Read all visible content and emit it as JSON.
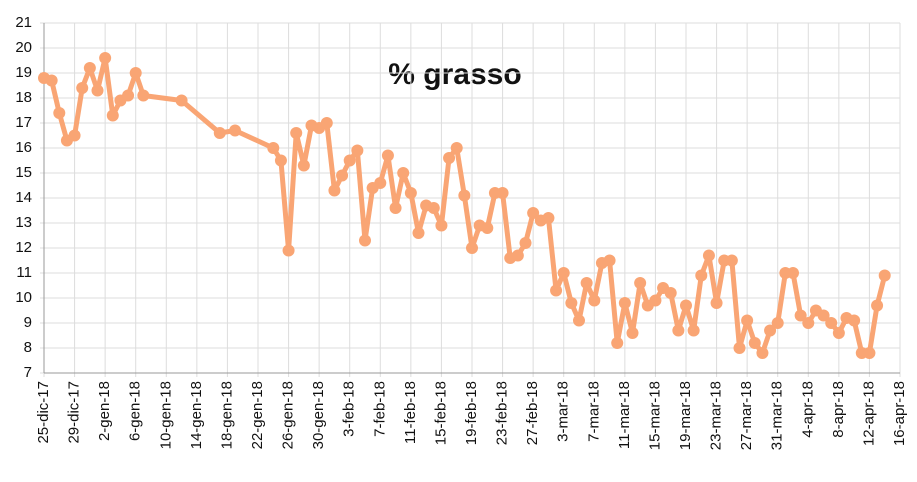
{
  "chart_data": {
    "type": "line",
    "title": "% grasso",
    "color": "#f9a574",
    "grid": true,
    "x": [
      "2017-12-25",
      "2017-12-26",
      "2017-12-27",
      "2017-12-28",
      "2017-12-29",
      "2017-12-30",
      "2017-12-31",
      "2018-01-01",
      "2018-01-02",
      "2018-01-03",
      "2018-01-04",
      "2018-01-05",
      "2018-01-06",
      "2018-01-07",
      "2018-01-12",
      "2018-01-17",
      "2018-01-19",
      "2018-01-24",
      "2018-01-25",
      "2018-01-26",
      "2018-01-27",
      "2018-01-28",
      "2018-01-29",
      "2018-01-30",
      "2018-01-31",
      "2018-02-01",
      "2018-02-02",
      "2018-02-03",
      "2018-02-04",
      "2018-02-05",
      "2018-02-06",
      "2018-02-07",
      "2018-02-08",
      "2018-02-09",
      "2018-02-10",
      "2018-02-11",
      "2018-02-12",
      "2018-02-13",
      "2018-02-14",
      "2018-02-15",
      "2018-02-16",
      "2018-02-17",
      "2018-02-18",
      "2018-02-19",
      "2018-02-20",
      "2018-02-21",
      "2018-02-22",
      "2018-02-23",
      "2018-02-24",
      "2018-02-25",
      "2018-02-26",
      "2018-02-27",
      "2018-02-28",
      "2018-03-01",
      "2018-03-02",
      "2018-03-03",
      "2018-03-04",
      "2018-03-05",
      "2018-03-06",
      "2018-03-07",
      "2018-03-08",
      "2018-03-09",
      "2018-03-10",
      "2018-03-11",
      "2018-03-12",
      "2018-03-13",
      "2018-03-14",
      "2018-03-15",
      "2018-03-16",
      "2018-03-17",
      "2018-03-18",
      "2018-03-19",
      "2018-03-20",
      "2018-03-21",
      "2018-03-22",
      "2018-03-23",
      "2018-03-24",
      "2018-03-25",
      "2018-03-26",
      "2018-03-27",
      "2018-03-28",
      "2018-03-29",
      "2018-03-30",
      "2018-03-31",
      "2018-04-01",
      "2018-04-02",
      "2018-04-03",
      "2018-04-04",
      "2018-04-05",
      "2018-04-06",
      "2018-04-07",
      "2018-04-08",
      "2018-04-09",
      "2018-04-10",
      "2018-04-11",
      "2018-04-12",
      "2018-04-13",
      "2018-04-14"
    ],
    "values": [
      18.8,
      18.7,
      17.4,
      16.3,
      16.5,
      18.4,
      19.2,
      18.3,
      19.6,
      17.3,
      17.9,
      18.1,
      19.0,
      18.1,
      17.9,
      16.6,
      16.7,
      16.0,
      15.5,
      11.9,
      16.6,
      15.3,
      16.9,
      16.8,
      17.0,
      14.3,
      14.9,
      15.5,
      15.9,
      12.3,
      14.4,
      14.6,
      15.7,
      13.6,
      15.0,
      14.2,
      12.6,
      13.7,
      13.6,
      12.9,
      15.6,
      16.0,
      14.1,
      12.0,
      12.9,
      12.8,
      14.2,
      14.2,
      11.6,
      11.7,
      12.2,
      13.4,
      13.1,
      13.2,
      10.3,
      11.0,
      9.8,
      9.1,
      10.6,
      9.9,
      11.4,
      11.5,
      8.2,
      9.8,
      8.6,
      10.6,
      9.7,
      9.9,
      10.4,
      10.2,
      8.7,
      9.7,
      8.7,
      10.9,
      11.7,
      9.8,
      11.5,
      11.5,
      8.0,
      9.1,
      8.2,
      7.8,
      8.7,
      9.0,
      11.0,
      11.0,
      9.3,
      9.0,
      9.5,
      9.3,
      9.0,
      8.6,
      9.2,
      9.1,
      7.8,
      7.8,
      9.7,
      10.9
    ],
    "xlim": [
      "2017-12-25",
      "2018-04-16"
    ],
    "xticks": [
      {
        "value": "2017-12-25",
        "label": "25-dic-17"
      },
      {
        "value": "2017-12-29",
        "label": "29-dic-17"
      },
      {
        "value": "2018-01-02",
        "label": "2-gen-18"
      },
      {
        "value": "2018-01-06",
        "label": "6-gen-18"
      },
      {
        "value": "2018-01-10",
        "label": "10-gen-18"
      },
      {
        "value": "2018-01-14",
        "label": "14-gen-18"
      },
      {
        "value": "2018-01-18",
        "label": "18-gen-18"
      },
      {
        "value": "2018-01-22",
        "label": "22-gen-18"
      },
      {
        "value": "2018-01-26",
        "label": "26-gen-18"
      },
      {
        "value": "2018-01-30",
        "label": "30-gen-18"
      },
      {
        "value": "2018-02-03",
        "label": "3-feb-18"
      },
      {
        "value": "2018-02-07",
        "label": "7-feb-18"
      },
      {
        "value": "2018-02-11",
        "label": "11-feb-18"
      },
      {
        "value": "2018-02-15",
        "label": "15-feb-18"
      },
      {
        "value": "2018-02-19",
        "label": "19-feb-18"
      },
      {
        "value": "2018-02-23",
        "label": "23-feb-18"
      },
      {
        "value": "2018-02-27",
        "label": "27-feb-18"
      },
      {
        "value": "2018-03-03",
        "label": "3-mar-18"
      },
      {
        "value": "2018-03-07",
        "label": "7-mar-18"
      },
      {
        "value": "2018-03-11",
        "label": "11-mar-18"
      },
      {
        "value": "2018-03-15",
        "label": "15-mar-18"
      },
      {
        "value": "2018-03-19",
        "label": "19-mar-18"
      },
      {
        "value": "2018-03-23",
        "label": "23-mar-18"
      },
      {
        "value": "2018-03-27",
        "label": "27-mar-18"
      },
      {
        "value": "2018-03-31",
        "label": "31-mar-18"
      },
      {
        "value": "2018-04-04",
        "label": "4-apr-18"
      },
      {
        "value": "2018-04-08",
        "label": "8-apr-18"
      },
      {
        "value": "2018-04-12",
        "label": "12-apr-18"
      },
      {
        "value": "2018-04-16",
        "label": "16-apr-18"
      }
    ],
    "ylim": [
      7,
      21
    ],
    "yticks": [
      7,
      8,
      9,
      10,
      11,
      12,
      13,
      14,
      15,
      16,
      17,
      18,
      19,
      20,
      21
    ]
  }
}
